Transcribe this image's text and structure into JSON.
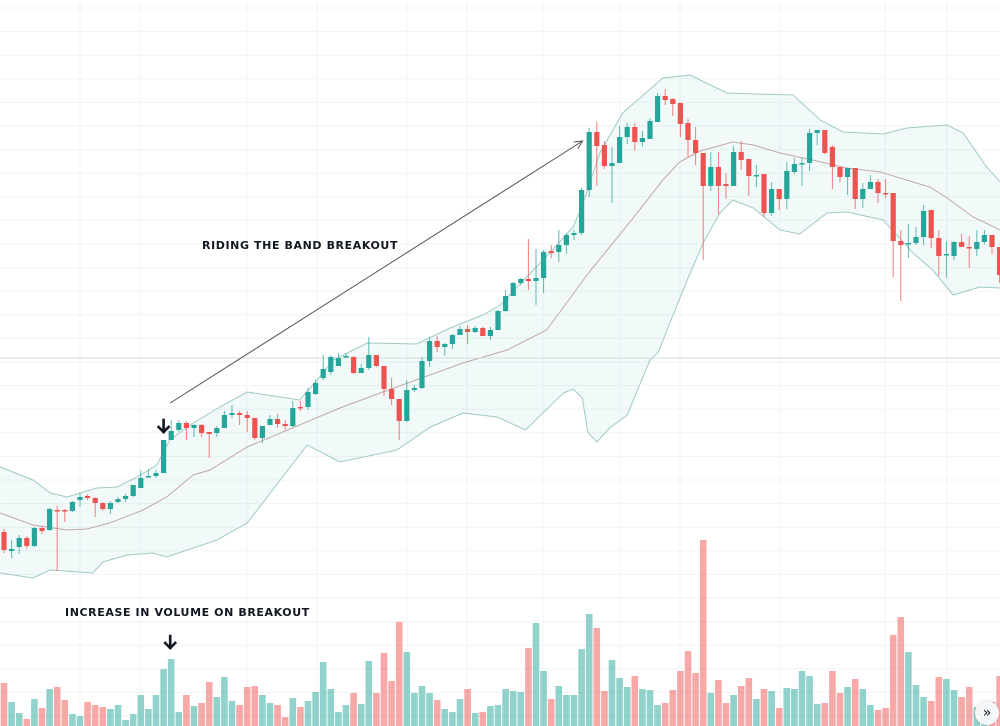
{
  "annotations": {
    "band_label": "RIDING THE BAND BREAKOUT",
    "volume_label": "INCREASE IN VOLUME ON BREAKOUT"
  },
  "controls": {
    "scroll_to_latest_icon": "double-chevron-right-icon",
    "scroll_to_latest_glyph": "»"
  },
  "colors": {
    "up": "#26a69a",
    "down": "#ef5350",
    "volume_up": "rgba(38,166,154,0.5)",
    "volume_down": "rgba(239,83,80,0.5)",
    "band_line": "#9fcac5",
    "band_fill": "rgba(38,166,154,0.06)",
    "band_basis": "#c2a6aa",
    "grid": "#f0f3f5",
    "price_line": "#d5dbdb",
    "annotation": "#131722"
  },
  "chart_data": {
    "type": "candlestick",
    "title": "",
    "indicators": [
      "bollinger-bands",
      "volume"
    ],
    "ylim": [
      0,
      72.6
    ],
    "volume_ylim": [
      0,
      200
    ],
    "grid": true,
    "ohlc": [
      [
        19.4,
        19.7,
        17.3,
        17.6
      ],
      [
        17.5,
        18.6,
        16.8,
        17.7
      ],
      [
        17.9,
        19.1,
        17.2,
        18.8
      ],
      [
        18.8,
        19.0,
        17.7,
        18.0
      ],
      [
        18.0,
        19.9,
        17.9,
        19.8
      ],
      [
        19.8,
        20.0,
        19.2,
        19.5
      ],
      [
        19.6,
        21.8,
        19.5,
        21.7
      ],
      [
        21.6,
        22.0,
        15.5,
        21.5
      ],
      [
        21.6,
        21.7,
        20.4,
        21.5
      ],
      [
        21.5,
        22.5,
        21.4,
        22.4
      ],
      [
        22.6,
        23.3,
        21.9,
        22.9
      ],
      [
        23.0,
        23.2,
        22.6,
        22.8
      ],
      [
        22.8,
        22.9,
        20.9,
        22.3
      ],
      [
        22.3,
        22.4,
        21.5,
        21.7
      ],
      [
        21.7,
        22.5,
        21.2,
        22.3
      ],
      [
        22.4,
        22.9,
        22.3,
        22.7
      ],
      [
        22.7,
        23.2,
        22.4,
        23.0
      ],
      [
        23.0,
        24.1,
        22.9,
        24.1
      ],
      [
        23.8,
        25.6,
        23.8,
        24.8
      ],
      [
        24.9,
        25.7,
        24.8,
        25.0
      ],
      [
        25.0,
        25.6,
        24.8,
        25.3
      ],
      [
        25.3,
        28.6,
        25.3,
        28.6
      ],
      [
        28.6,
        30.6,
        28.6,
        29.5
      ],
      [
        29.6,
        30.6,
        29.4,
        30.3
      ],
      [
        30.3,
        30.5,
        28.6,
        29.8
      ],
      [
        29.8,
        30.2,
        28.9,
        30.1
      ],
      [
        30.1,
        30.2,
        28.9,
        29.3
      ],
      [
        29.4,
        29.4,
        26.8,
        29.2
      ],
      [
        29.3,
        30.0,
        28.9,
        29.8
      ],
      [
        29.8,
        31.5,
        29.8,
        31.1
      ],
      [
        31.1,
        32.1,
        30.8,
        31.3
      ],
      [
        31.3,
        31.5,
        30.1,
        31.1
      ],
      [
        31.1,
        31.5,
        29.4,
        30.8
      ],
      [
        30.8,
        30.8,
        28.6,
        28.8
      ],
      [
        28.8,
        30.0,
        28.3,
        30.0
      ],
      [
        30.1,
        31.1,
        30.1,
        30.7
      ],
      [
        30.7,
        31.2,
        29.8,
        30.2
      ],
      [
        30.2,
        30.6,
        29.6,
        30.0
      ],
      [
        30.0,
        32.5,
        29.9,
        31.8
      ],
      [
        31.9,
        32.5,
        31.5,
        31.8
      ],
      [
        31.9,
        33.8,
        31.6,
        33.4
      ],
      [
        33.2,
        34.6,
        33.1,
        34.3
      ],
      [
        34.8,
        37.1,
        34.6,
        35.7
      ],
      [
        35.4,
        37.1,
        35.1,
        36.9
      ],
      [
        36.0,
        37.3,
        36.0,
        36.8
      ],
      [
        36.9,
        37.3,
        36.8,
        37.0
      ],
      [
        36.9,
        37.0,
        35.2,
        35.3
      ],
      [
        35.3,
        36.2,
        35.3,
        35.8
      ],
      [
        35.8,
        38.9,
        35.6,
        37.1
      ],
      [
        37.1,
        37.1,
        35.9,
        36.0
      ],
      [
        36.0,
        36.0,
        33.0,
        33.7
      ],
      [
        33.7,
        34.8,
        32.1,
        32.7
      ],
      [
        32.7,
        32.7,
        28.6,
        30.5
      ],
      [
        30.5,
        34.6,
        30.4,
        33.6
      ],
      [
        33.6,
        34.1,
        33.4,
        33.8
      ],
      [
        33.8,
        36.9,
        33.7,
        36.5
      ],
      [
        36.5,
        38.9,
        35.9,
        38.5
      ],
      [
        38.5,
        39.0,
        37.4,
        37.9
      ],
      [
        37.9,
        38.3,
        37.0,
        38.2
      ],
      [
        38.2,
        39.2,
        37.7,
        39.1
      ],
      [
        39.1,
        40.0,
        39.1,
        39.7
      ],
      [
        39.7,
        40.1,
        38.2,
        39.4
      ],
      [
        39.4,
        40.0,
        39.3,
        39.8
      ],
      [
        39.8,
        39.9,
        39.0,
        39.0
      ],
      [
        39.0,
        39.9,
        38.6,
        39.6
      ],
      [
        39.6,
        41.6,
        39.6,
        41.5
      ],
      [
        41.5,
        43.6,
        41.4,
        43.0
      ],
      [
        43.0,
        44.4,
        43.0,
        44.3
      ],
      [
        44.3,
        44.8,
        44.1,
        44.7
      ],
      [
        44.7,
        48.7,
        43.6,
        44.5
      ],
      [
        44.5,
        47.7,
        42.1,
        44.8
      ],
      [
        44.8,
        47.6,
        43.3,
        47.4
      ],
      [
        47.5,
        48.1,
        46.8,
        47.3
      ],
      [
        47.4,
        49.6,
        46.4,
        48.1
      ],
      [
        48.1,
        49.3,
        47.2,
        49.1
      ],
      [
        49.1,
        49.6,
        48.6,
        49.3
      ],
      [
        49.3,
        53.8,
        49.1,
        53.6
      ],
      [
        53.6,
        59.8,
        52.9,
        59.4
      ],
      [
        59.4,
        60.4,
        54.0,
        58.0
      ],
      [
        58.1,
        58.5,
        55.7,
        56.0
      ],
      [
        56.0,
        57.9,
        52.3,
        56.3
      ],
      [
        56.3,
        60.0,
        56.3,
        58.9
      ],
      [
        58.9,
        60.3,
        58.2,
        59.9
      ],
      [
        59.9,
        60.3,
        57.5,
        58.4
      ],
      [
        58.4,
        59.5,
        57.9,
        58.8
      ],
      [
        58.7,
        60.8,
        58.7,
        60.5
      ],
      [
        60.4,
        63.3,
        60.4,
        63.0
      ],
      [
        63.0,
        63.7,
        62.1,
        62.6
      ],
      [
        62.7,
        62.8,
        61.0,
        62.2
      ],
      [
        62.3,
        62.3,
        58.9,
        60.2
      ],
      [
        60.3,
        60.7,
        56.9,
        58.6
      ],
      [
        58.6,
        59.9,
        56.1,
        57.3
      ],
      [
        57.3,
        57.3,
        46.6,
        54.0
      ],
      [
        54.0,
        57.4,
        53.5,
        55.9
      ],
      [
        55.9,
        57.4,
        51.2,
        54.0
      ],
      [
        54.2,
        55.3,
        52.7,
        54.0
      ],
      [
        54.0,
        58.0,
        54.0,
        57.4
      ],
      [
        57.4,
        58.5,
        55.6,
        56.6
      ],
      [
        56.7,
        56.7,
        53.0,
        55.0
      ],
      [
        55.0,
        56.1,
        53.9,
        55.1
      ],
      [
        55.2,
        55.2,
        50.9,
        51.3
      ],
      [
        51.3,
        54.4,
        51.0,
        53.7
      ],
      [
        53.7,
        53.7,
        51.6,
        52.7
      ],
      [
        52.7,
        56.4,
        51.7,
        55.5
      ],
      [
        55.4,
        56.8,
        55.2,
        56.2
      ],
      [
        56.2,
        56.8,
        54.0,
        56.3
      ],
      [
        56.3,
        59.7,
        55.5,
        59.3
      ],
      [
        59.3,
        59.6,
        58.1,
        59.6
      ],
      [
        59.6,
        59.6,
        57.2,
        57.3
      ],
      [
        57.9,
        58.1,
        53.7,
        55.9
      ],
      [
        55.9,
        55.9,
        54.4,
        54.9
      ],
      [
        54.9,
        55.8,
        53.1,
        55.8
      ],
      [
        55.8,
        55.8,
        51.7,
        52.7
      ],
      [
        52.7,
        54.3,
        51.8,
        53.7
      ],
      [
        53.7,
        55.1,
        53.7,
        54.4
      ],
      [
        54.4,
        54.7,
        52.3,
        53.3
      ],
      [
        53.3,
        54.7,
        52.8,
        53.2
      ],
      [
        53.3,
        53.3,
        44.9,
        48.5
      ],
      [
        48.5,
        49.6,
        42.5,
        48.1
      ],
      [
        48.2,
        50.2,
        46.8,
        48.3
      ],
      [
        48.3,
        49.9,
        48.1,
        48.9
      ],
      [
        48.9,
        52.1,
        48.1,
        51.5
      ],
      [
        51.6,
        51.6,
        47.8,
        48.8
      ],
      [
        48.8,
        49.6,
        45.0,
        47.0
      ],
      [
        47.1,
        48.5,
        44.8,
        47.2
      ],
      [
        47.0,
        48.5,
        46.6,
        48.4
      ],
      [
        48.4,
        49.2,
        47.9,
        47.9
      ],
      [
        47.9,
        49.0,
        45.8,
        47.8
      ],
      [
        47.7,
        49.6,
        47.0,
        48.4
      ],
      [
        48.4,
        49.6,
        48.2,
        49.1
      ],
      [
        49.1,
        49.1,
        47.2,
        47.9
      ],
      [
        47.9,
        47.9,
        44.3,
        45.1
      ]
    ],
    "volume": [
      43,
      24,
      13,
      7,
      27,
      18,
      37,
      39,
      26,
      12,
      10,
      24,
      21,
      19,
      17,
      21,
      6,
      12,
      31,
      17,
      31,
      57,
      67,
      14,
      31,
      20,
      23,
      44,
      29,
      49,
      25,
      21,
      39,
      40,
      31,
      23,
      21,
      9,
      28,
      19,
      25,
      34,
      64,
      37,
      14,
      21,
      33,
      22,
      65,
      33,
      73,
      45,
      104,
      74,
      33,
      40,
      33,
      26,
      17,
      14,
      27,
      37,
      13,
      14,
      20,
      21,
      37,
      35,
      34,
      78,
      103,
      55,
      27,
      40,
      31,
      31,
      77,
      112,
      98,
      35,
      66,
      48,
      39,
      50,
      37,
      36,
      21,
      23,
      36,
      55,
      75,
      53,
      186,
      33,
      46,
      23,
      31,
      40,
      48,
      27,
      37,
      35,
      18,
      38,
      37,
      55,
      50,
      22,
      23,
      55,
      33,
      39,
      47,
      37,
      21,
      16,
      18,
      91,
      109,
      74,
      41,
      29,
      25,
      49,
      47,
      36,
      29,
      39,
      19,
      10,
      24,
      50
    ],
    "bollinger": {
      "upper": [
        [
          -0.5,
          25.9
        ],
        [
          3.8,
          24.6
        ],
        [
          6.1,
          23.3
        ],
        [
          8.3,
          22.9
        ],
        [
          12.2,
          23.8
        ],
        [
          14.9,
          23.9
        ],
        [
          17.5,
          24.9
        ],
        [
          20.1,
          26.1
        ],
        [
          21.8,
          28.6
        ],
        [
          24.9,
          30.3
        ],
        [
          28.4,
          31.9
        ],
        [
          32,
          33.4
        ],
        [
          38.9,
          32.6
        ],
        [
          41.2,
          34.6
        ],
        [
          43.3,
          36.6
        ],
        [
          47.8,
          38.3
        ],
        [
          54.3,
          38.2
        ],
        [
          58.7,
          39.8
        ],
        [
          63,
          41.1
        ],
        [
          65.3,
          42.1
        ],
        [
          67.5,
          43.9
        ],
        [
          71.8,
          47.3
        ],
        [
          74.9,
          49.9
        ],
        [
          76.2,
          52.3
        ],
        [
          78.4,
          57.3
        ],
        [
          81.4,
          61.3
        ],
        [
          86.7,
          64.8
        ],
        [
          90.3,
          65.1
        ],
        [
          91.6,
          64.6
        ],
        [
          95.1,
          63.3
        ],
        [
          99.1,
          63.2
        ],
        [
          103.8,
          63.1
        ],
        [
          107.4,
          60.6
        ],
        [
          110.4,
          59.4
        ],
        [
          115.7,
          59.2
        ],
        [
          118.8,
          59.8
        ],
        [
          124.1,
          60.1
        ],
        [
          126.2,
          59.3
        ],
        [
          129.3,
          55.9
        ],
        [
          131.1,
          54.4
        ]
      ],
      "basis": [
        [
          -0.5,
          21.3
        ],
        [
          3.8,
          20.1
        ],
        [
          8.3,
          19.6
        ],
        [
          10.9,
          19.7
        ],
        [
          13.9,
          20.3
        ],
        [
          18.3,
          21.6
        ],
        [
          21.4,
          22.9
        ],
        [
          24.9,
          25.1
        ],
        [
          27.1,
          25.6
        ],
        [
          32,
          27.9
        ],
        [
          44.2,
          31.8
        ],
        [
          49.5,
          33.3
        ],
        [
          60.4,
          36.3
        ],
        [
          66.2,
          37.6
        ],
        [
          71.4,
          39.6
        ],
        [
          74.5,
          42.8
        ],
        [
          76.7,
          45.1
        ],
        [
          79.7,
          47.9
        ],
        [
          83.3,
          51.3
        ],
        [
          86.7,
          54.6
        ],
        [
          88.9,
          56.4
        ],
        [
          91.6,
          57.5
        ],
        [
          95.9,
          58.4
        ],
        [
          98.6,
          58.1
        ],
        [
          102.1,
          57.3
        ],
        [
          106.4,
          56.6
        ],
        [
          110.9,
          55.8
        ],
        [
          115.3,
          55.4
        ],
        [
          119.6,
          54.4
        ],
        [
          121.8,
          53.9
        ],
        [
          124.1,
          52.8
        ],
        [
          127.5,
          50.9
        ],
        [
          131.1,
          49.6
        ]
      ],
      "lower": [
        [
          -0.5,
          15.3
        ],
        [
          3.8,
          14.8
        ],
        [
          6.1,
          15.6
        ],
        [
          11.7,
          15.3
        ],
        [
          13,
          16.4
        ],
        [
          16.2,
          17.1
        ],
        [
          19.6,
          17.3
        ],
        [
          21.4,
          16.9
        ],
        [
          28,
          18.6
        ],
        [
          32,
          20.3
        ],
        [
          39.9,
          28.1
        ],
        [
          44.2,
          26.4
        ],
        [
          51.7,
          27.6
        ],
        [
          56.1,
          29.9
        ],
        [
          60.4,
          31.3
        ],
        [
          64.9,
          30.9
        ],
        [
          68.6,
          29.6
        ],
        [
          73.6,
          33.3
        ],
        [
          74.9,
          33.7
        ],
        [
          76.1,
          32.8
        ],
        [
          76.8,
          29.4
        ],
        [
          78,
          28.4
        ],
        [
          79.7,
          29.8
        ],
        [
          82,
          31.1
        ],
        [
          85,
          36.6
        ],
        [
          86.1,
          37.4
        ],
        [
          87.6,
          40.3
        ],
        [
          89.9,
          44.6
        ],
        [
          92,
          48.3
        ],
        [
          94.2,
          51.3
        ],
        [
          95.9,
          52.6
        ],
        [
          98.6,
          51.8
        ],
        [
          102.1,
          49.6
        ],
        [
          104.7,
          49.2
        ],
        [
          108.3,
          51.3
        ],
        [
          110.9,
          51.4
        ],
        [
          115.7,
          50.6
        ],
        [
          119.6,
          47.3
        ],
        [
          122.2,
          45.6
        ],
        [
          124.9,
          43.1
        ],
        [
          128.4,
          43.9
        ],
        [
          131.1,
          43.8
        ]
      ]
    },
    "price_line": 36.8,
    "annotation_marks": {
      "breakout_candle_index": 21,
      "breakout_volume_index": 22,
      "trend_arrow_from": [
        22,
        32.3
      ],
      "trend_arrow_to": [
        76,
        58.5
      ]
    }
  }
}
